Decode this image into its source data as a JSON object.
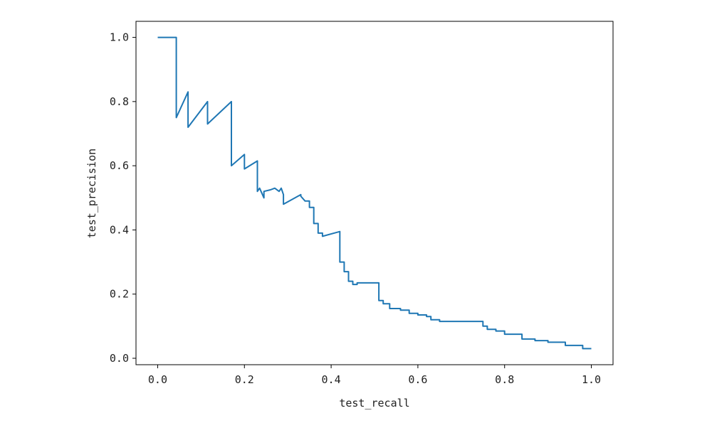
{
  "chart_data": {
    "type": "line",
    "xlabel": "test_recall",
    "ylabel": "test_precision",
    "xlim": [
      -0.05,
      1.05
    ],
    "ylim": [
      -0.02,
      1.05
    ],
    "xticks": [
      "0.0",
      "0.2",
      "0.4",
      "0.6",
      "0.8",
      "1.0"
    ],
    "yticks": [
      "0.0",
      "0.2",
      "0.4",
      "0.6",
      "0.8",
      "1.0"
    ],
    "grid": false,
    "line_color": "#1f77b4",
    "series": [
      {
        "x": [
          0.0,
          0.043,
          0.043,
          0.07,
          0.07,
          0.115,
          0.115,
          0.17,
          0.17,
          0.2,
          0.2,
          0.23,
          0.23,
          0.235,
          0.245,
          0.245,
          0.26,
          0.27,
          0.28,
          0.285,
          0.29,
          0.29,
          0.33,
          0.33,
          0.34,
          0.35,
          0.35,
          0.36,
          0.36,
          0.37,
          0.37,
          0.38,
          0.38,
          0.42,
          0.42,
          0.43,
          0.43,
          0.44,
          0.44,
          0.45,
          0.45,
          0.46,
          0.46,
          0.51,
          0.51,
          0.52,
          0.52,
          0.535,
          0.535,
          0.56,
          0.56,
          0.58,
          0.58,
          0.6,
          0.6,
          0.62,
          0.62,
          0.63,
          0.63,
          0.65,
          0.65,
          0.75,
          0.75,
          0.76,
          0.76,
          0.78,
          0.78,
          0.8,
          0.8,
          0.84,
          0.84,
          0.87,
          0.87,
          0.9,
          0.9,
          0.94,
          0.94,
          0.98,
          0.98,
          1.0
        ],
        "y": [
          1.0,
          1.0,
          0.75,
          0.83,
          0.72,
          0.8,
          0.73,
          0.8,
          0.6,
          0.635,
          0.59,
          0.615,
          0.52,
          0.53,
          0.5,
          0.52,
          0.525,
          0.53,
          0.52,
          0.53,
          0.51,
          0.48,
          0.51,
          0.505,
          0.49,
          0.49,
          0.47,
          0.47,
          0.42,
          0.42,
          0.39,
          0.39,
          0.38,
          0.395,
          0.3,
          0.3,
          0.27,
          0.27,
          0.24,
          0.24,
          0.23,
          0.23,
          0.235,
          0.235,
          0.18,
          0.18,
          0.17,
          0.17,
          0.155,
          0.155,
          0.15,
          0.15,
          0.14,
          0.14,
          0.135,
          0.135,
          0.13,
          0.13,
          0.12,
          0.12,
          0.115,
          0.115,
          0.1,
          0.1,
          0.09,
          0.09,
          0.085,
          0.085,
          0.075,
          0.075,
          0.06,
          0.06,
          0.055,
          0.055,
          0.05,
          0.05,
          0.04,
          0.04,
          0.03,
          0.03
        ]
      }
    ]
  }
}
